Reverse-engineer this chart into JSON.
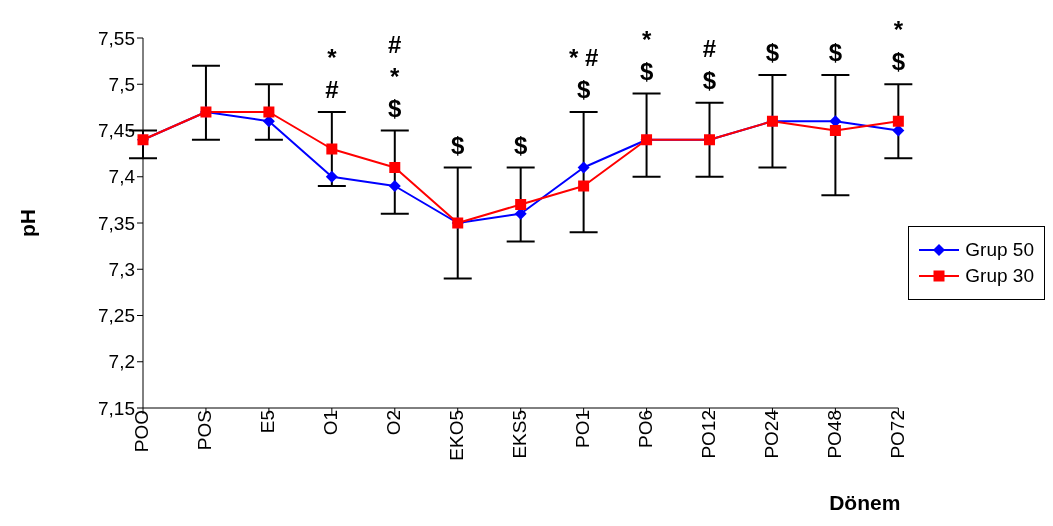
{
  "chart_data": {
    "type": "line",
    "xlabel": "Dönem",
    "ylabel": "pH",
    "categories": [
      "POO",
      "POS",
      "E5",
      "O1",
      "O2",
      "EKO5",
      "EKS5",
      "PO1",
      "PO6",
      "PO12",
      "PO24",
      "PO48",
      "PO72"
    ],
    "ylim": [
      7.15,
      7.55
    ],
    "yticks": [
      {
        "value": 7.15,
        "label": "7,15"
      },
      {
        "value": 7.2,
        "label": "7,2"
      },
      {
        "value": 7.25,
        "label": "7,25"
      },
      {
        "value": 7.3,
        "label": "7,3"
      },
      {
        "value": 7.35,
        "label": "7,35"
      },
      {
        "value": 7.4,
        "label": "7,4"
      },
      {
        "value": 7.45,
        "label": "7,45"
      },
      {
        "value": 7.5,
        "label": "7,5"
      },
      {
        "value": 7.55,
        "label": "7,55"
      }
    ],
    "grid": false,
    "legend": "right",
    "series": [
      {
        "name": "Grup 50",
        "color": "#0000ff",
        "marker": "diamond",
        "values": [
          7.44,
          7.47,
          7.46,
          7.4,
          7.39,
          7.35,
          7.36,
          7.41,
          7.44,
          7.44,
          7.46,
          7.46,
          7.45
        ],
        "errors": [
          [
            7.42,
            7.45
          ],
          [
            7.44,
            7.52
          ],
          [
            7.44,
            7.5
          ],
          [
            7.39,
            7.47
          ],
          [
            7.36,
            7.45
          ],
          [
            7.29,
            7.41
          ],
          [
            7.33,
            7.41
          ],
          [
            7.34,
            7.47
          ],
          [
            7.4,
            7.49
          ],
          [
            7.4,
            7.48
          ],
          [
            7.41,
            7.51
          ],
          [
            7.38,
            7.51
          ],
          [
            7.42,
            7.5
          ]
        ],
        "value_labels": [
          null,
          null,
          null,
          "*\n#",
          "#\n*\n$",
          "$",
          "$",
          "* #\n$",
          "*\n$",
          "#\n$",
          "$",
          "$",
          "*\n$"
        ]
      },
      {
        "name": "Grup 30",
        "color": "#ff0000",
        "marker": "square",
        "values": [
          7.44,
          7.47,
          7.47,
          7.43,
          7.41,
          7.35,
          7.37,
          7.39,
          7.44,
          7.44,
          7.46,
          7.45,
          7.46
        ]
      }
    ]
  }
}
